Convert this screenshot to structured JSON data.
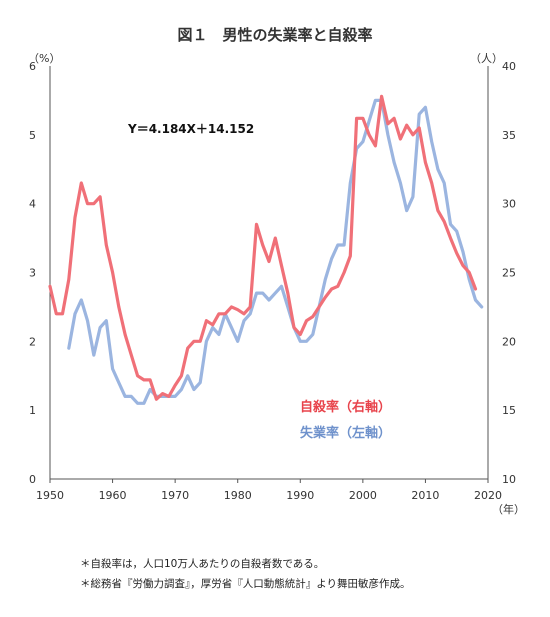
{
  "chart_data": {
    "type": "line",
    "title": "図１　男性の失業率と自殺率",
    "left_unit": "（%）",
    "right_unit": "（人）",
    "x_unit": "（年）",
    "xlim": [
      1950,
      2020
    ],
    "ylim_left": [
      0,
      6
    ],
    "ylim_right": [
      10,
      40
    ],
    "x_ticks": [
      1950,
      1960,
      1970,
      1980,
      1990,
      2000,
      2010,
      2020
    ],
    "left_ticks": [
      0,
      1,
      2,
      3,
      4,
      5,
      6
    ],
    "right_ticks": [
      10,
      15,
      20,
      25,
      30,
      35,
      40
    ],
    "annotation": "Y＝4.184X＋14.152",
    "grid": false,
    "legend_position": "center-right",
    "series": [
      {
        "name": "自殺率（右軸）",
        "axis": "right",
        "color": "#f07078",
        "x": [
          1950,
          1951,
          1952,
          1953,
          1954,
          1955,
          1956,
          1957,
          1958,
          1959,
          1960,
          1961,
          1962,
          1963,
          1964,
          1965,
          1966,
          1967,
          1968,
          1969,
          1970,
          1971,
          1972,
          1973,
          1974,
          1975,
          1976,
          1977,
          1978,
          1979,
          1980,
          1981,
          1982,
          1983,
          1984,
          1985,
          1986,
          1987,
          1988,
          1989,
          1990,
          1991,
          1992,
          1993,
          1994,
          1995,
          1996,
          1997,
          1998,
          1999,
          2000,
          2001,
          2002,
          2003,
          2004,
          2005,
          2006,
          2007,
          2008,
          2009,
          2010,
          2011,
          2012,
          2013,
          2014,
          2015,
          2016,
          2017,
          2018
        ],
        "values": [
          24,
          22,
          22,
          24.5,
          29,
          31.5,
          30,
          30,
          30.5,
          27,
          25,
          22.5,
          20.5,
          19,
          17.5,
          17.2,
          17.2,
          15.8,
          16.2,
          16.0,
          16.8,
          17.5,
          19.5,
          20,
          20,
          21.5,
          21.2,
          22,
          22,
          22.5,
          22.3,
          22,
          22.5,
          28.5,
          27,
          25.8,
          27.5,
          25.5,
          23.5,
          21,
          20.5,
          21.5,
          21.8,
          22.5,
          23.2,
          23.8,
          24,
          25,
          26.2,
          36.2,
          36.2,
          35,
          34.2,
          37.8,
          35.8,
          36.2,
          34.7,
          35.7,
          35,
          35.5,
          33,
          31.5,
          29.5,
          28.7,
          27.5,
          26.4,
          25.5,
          25.0,
          23.8
        ]
      },
      {
        "name": "失業率（左軸）",
        "axis": "left",
        "color": "#9bb5e0",
        "x": [
          1953,
          1954,
          1955,
          1956,
          1957,
          1958,
          1959,
          1960,
          1961,
          1962,
          1963,
          1964,
          1965,
          1966,
          1967,
          1968,
          1969,
          1970,
          1971,
          1972,
          1973,
          1974,
          1975,
          1976,
          1977,
          1978,
          1979,
          1980,
          1981,
          1982,
          1983,
          1984,
          1985,
          1986,
          1987,
          1988,
          1989,
          1990,
          1991,
          1992,
          1993,
          1994,
          1995,
          1996,
          1997,
          1998,
          1999,
          2000,
          2001,
          2002,
          2003,
          2004,
          2005,
          2006,
          2007,
          2008,
          2009,
          2010,
          2011,
          2012,
          2013,
          2014,
          2015,
          2016,
          2017,
          2018,
          2019
        ],
        "values": [
          1.9,
          2.4,
          2.6,
          2.3,
          1.8,
          2.2,
          2.3,
          1.6,
          1.4,
          1.2,
          1.2,
          1.1,
          1.1,
          1.3,
          1.2,
          1.2,
          1.2,
          1.2,
          1.3,
          1.5,
          1.3,
          1.4,
          2.0,
          2.2,
          2.1,
          2.4,
          2.2,
          2.0,
          2.3,
          2.4,
          2.7,
          2.7,
          2.6,
          2.7,
          2.8,
          2.5,
          2.2,
          2.0,
          2.0,
          2.1,
          2.5,
          2.9,
          3.2,
          3.4,
          3.4,
          4.3,
          4.8,
          4.9,
          5.2,
          5.5,
          5.5,
          5.0,
          4.6,
          4.3,
          3.9,
          4.1,
          5.3,
          5.4,
          4.9,
          4.5,
          4.3,
          3.7,
          3.6,
          3.3,
          2.9,
          2.6,
          2.5
        ]
      }
    ]
  },
  "notes": [
    "＊自殺率は，人口10万人あたりの自殺者数である。",
    "＊総務省『労働力調査』，厚労省『人口動態統計』より舞田敏彦作成。"
  ]
}
